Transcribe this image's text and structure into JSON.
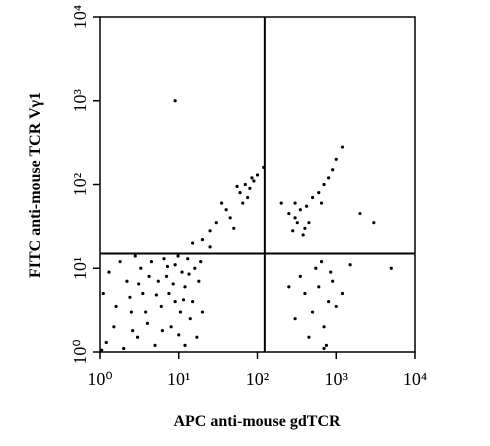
{
  "chart_data": {
    "type": "scatter",
    "xlabel": "APC anti-mouse gdTCR",
    "ylabel": "FITC anti-mouse TCR Vγ1",
    "xscale": "log",
    "yscale": "log",
    "xlim": [
      1,
      10000
    ],
    "ylim": [
      1,
      10000
    ],
    "xticks": [
      {
        "value": 1,
        "label": "10⁰"
      },
      {
        "value": 10,
        "label": "10¹"
      },
      {
        "value": 100,
        "label": "10²"
      },
      {
        "value": 1000,
        "label": "10³"
      },
      {
        "value": 10000,
        "label": "10⁴"
      }
    ],
    "yticks": [
      {
        "value": 1,
        "label": "10⁰"
      },
      {
        "value": 10,
        "label": "10¹"
      },
      {
        "value": 100,
        "label": "10²"
      },
      {
        "value": 1000,
        "label": "10³"
      },
      {
        "value": 10000,
        "label": "10⁴"
      }
    ],
    "quadrant_x": 124,
    "quadrant_y": 15,
    "color": "#000000",
    "x": [
      1.2,
      1.5,
      2,
      2.5,
      3,
      3.5,
      4,
      5,
      6,
      7,
      8,
      9,
      10,
      12,
      14,
      16,
      1.1,
      1.3,
      1.8,
      2.2,
      2.8,
      3.3,
      4.5,
      5.5,
      6.5,
      7.5,
      9,
      11,
      13,
      15,
      18,
      20,
      1.6,
      2.4,
      3.8,
      4.2,
      5.2,
      6.2,
      8.5,
      10.5,
      12,
      17,
      19,
      1.05,
      2.6,
      3.1,
      7.2,
      9.8,
      11.5,
      13.5,
      60,
      70,
      80,
      90,
      75,
      55,
      100,
      85,
      65,
      40,
      30,
      25,
      20,
      120,
      50,
      35,
      45,
      15,
      25,
      300,
      350,
      400,
      250,
      300,
      450,
      380,
      600,
      700,
      800,
      650,
      900,
      500,
      280,
      320,
      420,
      1000,
      1200,
      2000,
      3000,
      200,
      400,
      500,
      600,
      700,
      800,
      350,
      300,
      900,
      1000,
      750,
      550,
      450,
      650,
      1200,
      250,
      850,
      700,
      1500,
      5000,
      9
    ],
    "y": [
      1.3,
      2,
      1.1,
      3,
      1.5,
      5,
      2.2,
      1.2,
      3.5,
      8,
      2,
      4,
      1.6,
      6,
      2.5,
      10,
      5,
      9,
      12,
      7,
      14,
      10,
      12,
      7,
      13,
      5,
      11,
      9,
      13,
      4,
      7,
      3,
      3.5,
      4.5,
      3,
      8,
      4.8,
      1.8,
      6.5,
      3,
      1.2,
      1.5,
      12,
      1.05,
      1.8,
      6.5,
      10.5,
      14,
      4.2,
      8.5,
      80,
      100,
      90,
      110,
      70,
      95,
      130,
      120,
      60,
      50,
      35,
      28,
      22,
      160,
      30,
      60,
      40,
      20,
      18,
      40,
      50,
      30,
      45,
      60,
      35,
      25,
      80,
      100,
      120,
      60,
      150,
      70,
      28,
      35,
      55,
      200,
      280,
      45,
      35,
      60,
      5,
      3,
      6,
      2,
      4,
      8,
      2.5,
      7,
      3.5,
      1.2,
      10,
      1.5,
      12,
      5,
      6,
      9,
      1.1,
      11,
      10,
      1000
    ]
  }
}
